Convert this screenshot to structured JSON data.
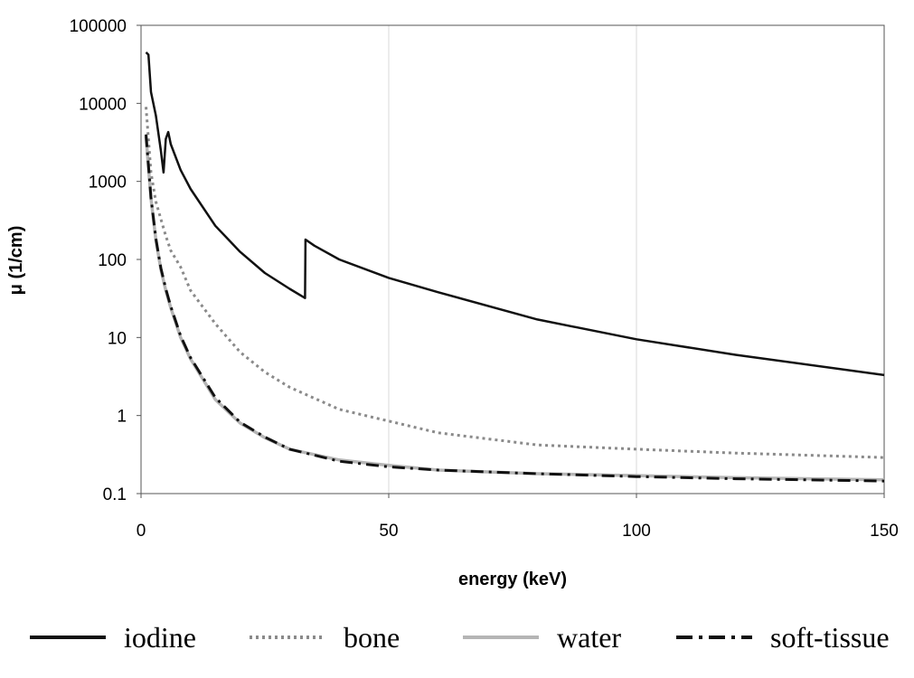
{
  "chart_data": {
    "type": "line",
    "xlabel": "energy (keV)",
    "ylabel": "μ (1/cm)",
    "xlim": [
      0,
      150
    ],
    "ylim": [
      0.1,
      100000
    ],
    "yscale": "log",
    "x_ticks": [
      0,
      50,
      100,
      150
    ],
    "y_ticks": [
      0.1,
      1,
      10,
      100,
      1000,
      10000,
      100000
    ],
    "x_tick_labels": [
      "0",
      "50",
      "100",
      "150"
    ],
    "y_tick_labels": [
      "0.1",
      "1",
      "10",
      "100",
      "1000",
      "10000",
      "100000"
    ],
    "grid": "vertical",
    "legend_position": "bottom",
    "series": [
      {
        "name": "iodine",
        "color": "#111111",
        "style": "solid",
        "x": [
          1,
          1.5,
          2,
          3,
          4,
          4.55,
          5,
          5.5,
          6,
          8,
          10,
          15,
          20,
          25,
          30,
          33.1,
          33.2,
          35,
          40,
          50,
          60,
          80,
          100,
          120,
          150
        ],
        "y": [
          45000,
          42000,
          14000,
          7000,
          2500,
          1300,
          3500,
          4300,
          3000,
          1400,
          800,
          270,
          125,
          67,
          42,
          32,
          180,
          150,
          100,
          58,
          38,
          17,
          9.5,
          6,
          3.3
        ]
      },
      {
        "name": "bone",
        "color": "#8a8a8a",
        "style": "dotted",
        "x": [
          1,
          2,
          3,
          4,
          5,
          6,
          8,
          10,
          15,
          20,
          25,
          30,
          40,
          50,
          60,
          80,
          100,
          120,
          150
        ],
        "y": [
          9000,
          1300,
          550,
          330,
          200,
          130,
          80,
          40,
          15,
          6.5,
          3.6,
          2.3,
          1.2,
          0.85,
          0.6,
          0.42,
          0.37,
          0.33,
          0.29
        ]
      },
      {
        "name": "water",
        "color": "#b5b5b5",
        "style": "solid",
        "x": [
          1,
          2,
          3,
          4,
          5,
          6,
          8,
          10,
          15,
          20,
          25,
          30,
          40,
          50,
          60,
          80,
          100,
          120,
          150
        ],
        "y": [
          3800,
          600,
          180,
          75,
          40,
          24,
          10,
          5.3,
          1.6,
          0.8,
          0.52,
          0.37,
          0.27,
          0.23,
          0.2,
          0.18,
          0.17,
          0.16,
          0.15
        ]
      },
      {
        "name": "soft-tissue",
        "color": "#111111",
        "style": "dashdot",
        "x": [
          1,
          2,
          3,
          4,
          5,
          6,
          8,
          10,
          15,
          20,
          25,
          30,
          40,
          50,
          60,
          80,
          100,
          120,
          150
        ],
        "y": [
          4000,
          620,
          185,
          78,
          42,
          25,
          10.5,
          5.5,
          1.7,
          0.82,
          0.53,
          0.37,
          0.26,
          0.22,
          0.2,
          0.18,
          0.165,
          0.155,
          0.145
        ]
      }
    ]
  }
}
